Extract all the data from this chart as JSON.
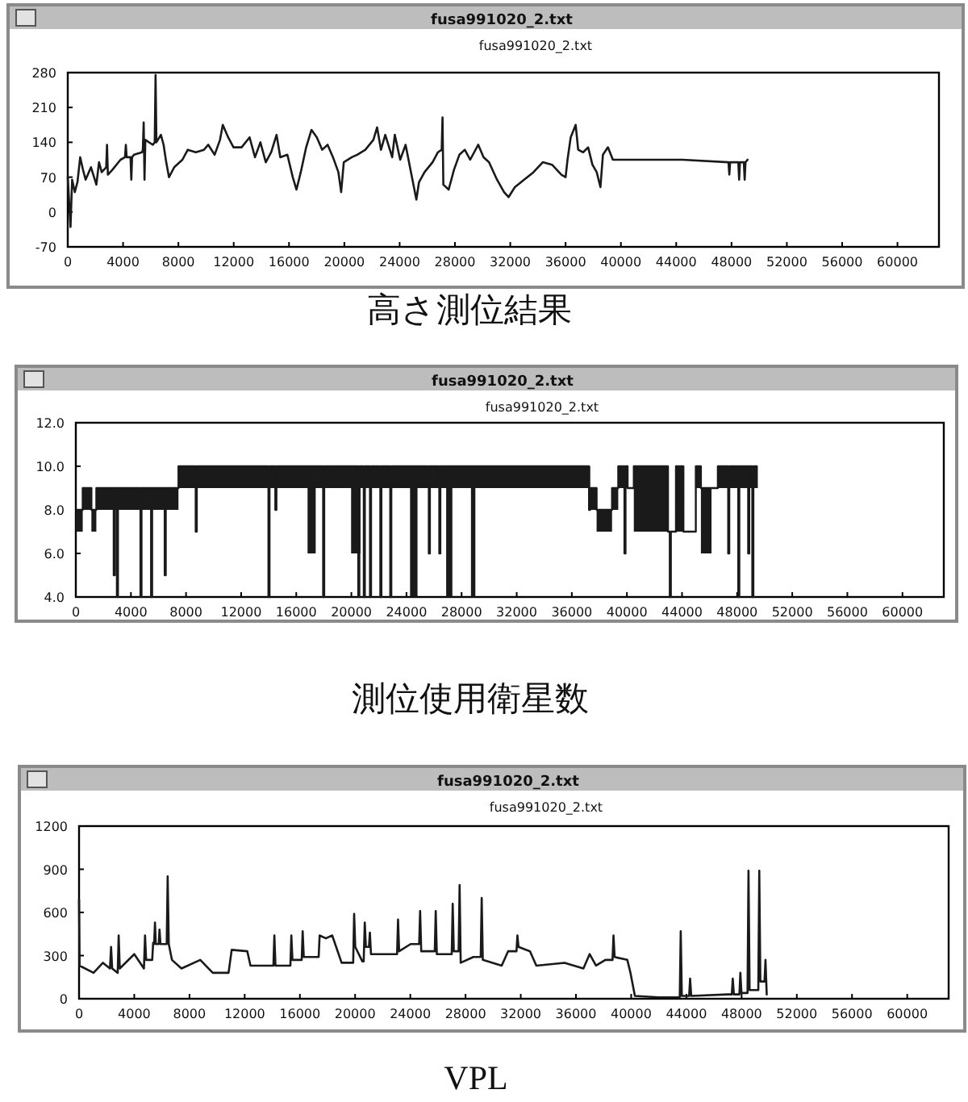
{
  "chart_data": [
    {
      "type": "line",
      "title": "fusa991020_2.txt",
      "subtitle": "fusa991020_2.txt",
      "annotations": [
        "高さ測位結果"
      ],
      "xlim": [
        0,
        63000
      ],
      "xticks": [
        0,
        4000,
        8000,
        12000,
        16000,
        20000,
        24000,
        28000,
        32000,
        36000,
        40000,
        44000,
        48000,
        52000,
        56000,
        60000
      ],
      "ylim": [
        -70,
        280
      ],
      "yticks": [
        -70,
        0,
        70,
        140,
        210,
        280
      ],
      "series": [
        {
          "color": "#1a1a1a",
          "x": [
            0,
            200,
            315,
            510,
            700,
            900,
            1100,
            1290,
            1680,
            2070,
            2260,
            2455,
            2780,
            2840,
            2900,
            3230,
            3815,
            4140,
            4200,
            4260,
            4540,
            4595,
            4650,
            4790,
            5370,
            5430,
            5490,
            5550,
            5610,
            6150,
            6290,
            6350,
            6410,
            6735,
            6930,
            7120,
            7320,
            7700,
            8290,
            8680,
            9260,
            9845,
            10160,
            10620,
            11010,
            11210,
            11600,
            11985,
            12570,
            13150,
            13540,
            13930,
            14320,
            14710,
            15100,
            15370,
            15880,
            16270,
            16540,
            16850,
            17240,
            17625,
            18010,
            18400,
            18790,
            19180,
            19570,
            19770,
            19960,
            20540,
            20930,
            21520,
            22100,
            22370,
            22650,
            22960,
            23460,
            23650,
            24040,
            24430,
            24820,
            25210,
            25400,
            25800,
            26380,
            26770,
            27040,
            27100,
            27160,
            27545,
            27930,
            28320,
            28710,
            29100,
            29685,
            30070,
            30460,
            31040,
            31550,
            31880,
            32330,
            33000,
            33680,
            34350,
            35020,
            35700,
            36000,
            36140,
            36370,
            36730,
            36910,
            37270,
            37630,
            37940,
            38250,
            38520,
            38700,
            39060,
            39420,
            44450,
            47780,
            47840,
            47900,
            48490,
            48550,
            48610,
            48890,
            48950,
            49010,
            49160
          ],
          "values": [
            70,
            -30,
            65,
            40,
            60,
            110,
            85,
            65,
            90,
            55,
            100,
            80,
            90,
            135,
            75,
            85,
            105,
            110,
            135,
            110,
            110,
            65,
            110,
            115,
            120,
            125,
            180,
            65,
            145,
            135,
            140,
            275,
            140,
            155,
            135,
            100,
            70,
            90,
            105,
            125,
            120,
            125,
            135,
            115,
            145,
            175,
            150,
            130,
            130,
            150,
            110,
            140,
            100,
            120,
            155,
            110,
            115,
            70,
            45,
            80,
            130,
            165,
            150,
            125,
            135,
            110,
            80,
            40,
            100,
            110,
            115,
            125,
            145,
            170,
            125,
            155,
            110,
            155,
            105,
            135,
            80,
            25,
            60,
            80,
            100,
            120,
            125,
            190,
            55,
            45,
            85,
            115,
            125,
            105,
            135,
            110,
            100,
            65,
            40,
            30,
            50,
            65,
            80,
            100,
            95,
            75,
            70,
            105,
            150,
            175,
            125,
            120,
            130,
            95,
            80,
            50,
            115,
            130,
            105,
            105,
            100,
            75,
            100,
            100,
            65,
            100,
            100,
            65,
            100,
            105
          ]
        }
      ]
    },
    {
      "type": "step",
      "title": "fusa991020_2.txt",
      "subtitle": "fusa991020_2.txt",
      "annotations": [
        "測位使用衛星数"
      ],
      "xlim": [
        0,
        63000
      ],
      "xticks": [
        0,
        4000,
        8000,
        12000,
        16000,
        20000,
        24000,
        28000,
        32000,
        36000,
        40000,
        44000,
        48000,
        52000,
        56000,
        60000
      ],
      "ylim": [
        4,
        12
      ],
      "yticks": [
        {
          "value": 4,
          "label": "4.0"
        },
        {
          "value": 6,
          "label": "6.0"
        },
        {
          "value": 8,
          "label": "8.0"
        },
        {
          "value": 10,
          "label": "10.0"
        },
        {
          "value": 12,
          "label": "12.0"
        }
      ],
      "series": [
        {
          "color": "#1a1a1a",
          "x": [
            0,
            500,
            1130,
            1490,
            2750,
            2830,
            2980,
            3060,
            4690,
            4770,
            5460,
            5540,
            6450,
            6530,
            7450,
            8700,
            8780,
            13980,
            14060,
            14480,
            14560,
            16820,
            17410,
            17950,
            18030,
            19980,
            20500,
            20580,
            20660,
            20900,
            20980,
            21350,
            21430,
            22100,
            22180,
            22820,
            22900,
            24260,
            24800,
            25620,
            25700,
            26380,
            26460,
            26880,
            27330,
            28680,
            29000,
            37250,
            37330,
            37800,
            38920,
            39370,
            39820,
            39900,
            40050,
            40500,
            42980,
            43110,
            43190,
            43560,
            44100,
            45000,
            45370,
            46140,
            46600,
            47350,
            47430,
            48080,
            48160,
            48800,
            48880,
            49100,
            49180,
            49430
          ],
          "values": [
            8,
            9,
            8,
            9,
            5,
            9,
            4,
            9,
            4,
            9,
            4,
            9,
            5,
            9,
            10,
            7,
            10,
            4,
            10,
            8,
            10,
            10,
            10,
            4,
            10,
            10,
            4,
            10,
            10,
            4,
            10,
            4,
            10,
            4,
            10,
            4,
            10,
            10,
            10,
            6,
            10,
            6,
            10,
            10,
            10,
            10,
            10,
            8,
            9,
            8,
            9,
            10,
            6,
            10,
            9,
            10,
            7,
            4,
            7,
            10,
            7,
            10,
            9,
            9,
            10,
            6,
            10,
            4,
            10,
            6,
            10,
            4,
            10,
            9
          ],
          "lower": [
            7,
            8,
            7,
            8,
            8,
            8,
            8,
            8,
            8,
            8,
            8,
            8,
            8,
            8,
            9,
            9,
            9,
            9,
            9,
            9,
            9,
            6,
            9,
            9,
            9,
            6,
            6,
            6,
            9,
            9,
            9,
            9,
            9,
            9,
            9,
            9,
            9,
            4,
            9,
            9,
            9,
            9,
            9,
            4,
            9,
            4,
            9,
            9,
            8,
            7,
            8,
            9,
            9,
            9,
            null,
            7,
            null,
            null,
            null,
            7,
            null,
            9,
            6,
            null,
            9,
            9,
            9,
            9,
            9,
            9,
            9,
            9,
            9,
            null
          ],
          "upper": [
            8,
            9,
            8,
            9,
            9,
            9,
            9,
            9,
            9,
            9,
            9,
            9,
            9,
            9,
            10,
            10,
            10,
            10,
            10,
            10,
            10,
            10,
            10,
            10,
            10,
            10,
            10,
            10,
            10,
            10,
            10,
            10,
            10,
            10,
            10,
            10,
            10,
            10,
            10,
            10,
            10,
            10,
            10,
            10,
            10,
            10,
            10,
            10,
            9,
            8,
            9,
            10,
            10,
            10,
            null,
            10,
            null,
            null,
            null,
            10,
            null,
            10,
            9,
            null,
            10,
            10,
            10,
            10,
            10,
            10,
            10,
            10,
            10,
            null
          ]
        }
      ]
    },
    {
      "type": "line",
      "title": "fusa991020_2.txt",
      "subtitle": "fusa991020_2.txt",
      "annotations": [
        "VPL"
      ],
      "xlim": [
        0,
        63000
      ],
      "xticks": [
        0,
        4000,
        8000,
        12000,
        16000,
        20000,
        24000,
        28000,
        32000,
        36000,
        40000,
        44000,
        48000,
        52000,
        56000,
        60000
      ],
      "ylim": [
        0,
        1200
      ],
      "yticks": [
        0,
        300,
        600,
        900,
        1200
      ],
      "series": [
        {
          "color": "#1a1a1a",
          "x": [
            0,
            40,
            1050,
            1730,
            2240,
            2320,
            2400,
            2800,
            2870,
            2950,
            4000,
            4700,
            4780,
            4860,
            5300,
            5370,
            5440,
            5500,
            5560,
            5770,
            5830,
            5900,
            6350,
            6420,
            6500,
            6730,
            7420,
            8780,
            9690,
            10830,
            11060,
            12190,
            12420,
            14080,
            14150,
            14230,
            15310,
            15380,
            15460,
            16130,
            16200,
            16280,
            17360,
            17430,
            17880,
            18340,
            19020,
            19860,
            19930,
            20010,
            20520,
            20620,
            20700,
            20780,
            21000,
            21070,
            21150,
            23040,
            23110,
            23190,
            24020,
            24640,
            24710,
            24790,
            25770,
            25840,
            25920,
            27000,
            27070,
            27150,
            27500,
            27570,
            27650,
            28570,
            29100,
            29170,
            29250,
            30620,
            31080,
            31690,
            31760,
            31840,
            32670,
            33130,
            35170,
            36540,
            36990,
            37450,
            38130,
            38650,
            38720,
            38800,
            39720,
            39950,
            40270,
            42000,
            43520,
            43590,
            43670,
            44200,
            44270,
            44350,
            47000,
            47290,
            47360,
            47440,
            47840,
            47910,
            47990,
            48430,
            48500,
            48580,
            49210,
            49280,
            49360,
            49660,
            49730,
            49820
          ],
          "values": [
            690,
            230,
            180,
            250,
            210,
            360,
            210,
            180,
            440,
            210,
            310,
            210,
            440,
            270,
            270,
            390,
            380,
            530,
            380,
            380,
            480,
            380,
            380,
            850,
            380,
            270,
            210,
            270,
            180,
            180,
            340,
            330,
            230,
            230,
            440,
            230,
            230,
            440,
            270,
            270,
            470,
            290,
            290,
            440,
            420,
            440,
            250,
            250,
            590,
            360,
            260,
            260,
            530,
            360,
            360,
            460,
            310,
            310,
            550,
            330,
            380,
            380,
            610,
            330,
            330,
            610,
            310,
            310,
            660,
            330,
            330,
            790,
            250,
            290,
            290,
            700,
            270,
            230,
            330,
            330,
            440,
            360,
            330,
            230,
            250,
            210,
            310,
            230,
            270,
            270,
            440,
            290,
            270,
            180,
            20,
            10,
            10,
            470,
            20,
            20,
            140,
            20,
            30,
            30,
            140,
            30,
            30,
            180,
            40,
            40,
            890,
            60,
            60,
            890,
            120,
            120,
            270,
            30
          ]
        }
      ]
    }
  ]
}
